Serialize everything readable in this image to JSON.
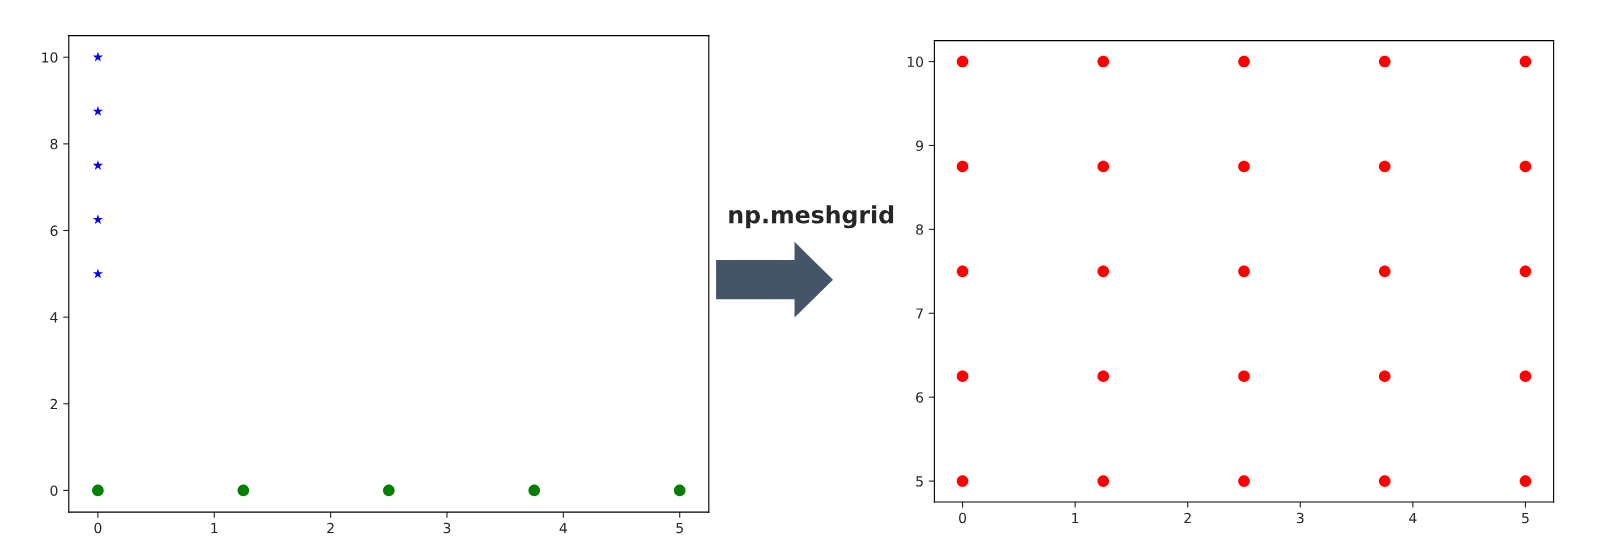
{
  "chart_data": [
    {
      "type": "scatter",
      "xlim": [
        -0.25,
        5.25
      ],
      "ylim": [
        -0.5,
        10.5
      ],
      "xticks": [
        0,
        1,
        2,
        3,
        4,
        5
      ],
      "yticks": [
        0,
        2,
        4,
        6,
        8,
        10
      ],
      "grid": false,
      "legend": false,
      "annotations": [
        "np.meshgrid"
      ],
      "series": [
        {
          "color": "#0000ff",
          "marker": "star",
          "x": [
            0,
            0,
            0,
            0,
            0
          ],
          "values": [
            5,
            6.25,
            7.5,
            8.75,
            10
          ]
        },
        {
          "color": "#008000",
          "marker": "circle",
          "x": [
            0,
            1.25,
            2.5,
            3.75,
            5
          ],
          "values": [
            0,
            0,
            0,
            0,
            0
          ]
        }
      ]
    },
    {
      "type": "scatter",
      "xlim": [
        -0.25,
        5.25
      ],
      "ylim": [
        4.75,
        10.25
      ],
      "xticks": [
        0,
        1,
        2,
        3,
        4,
        5
      ],
      "yticks": [
        5,
        6,
        7,
        8,
        9,
        10
      ],
      "grid": false,
      "legend": false,
      "series": [
        {
          "color": "#ff0000",
          "marker": "circle",
          "x": [
            0,
            1.25,
            2.5,
            3.75,
            5,
            0,
            1.25,
            2.5,
            3.75,
            5,
            0,
            1.25,
            2.5,
            3.75,
            5,
            0,
            1.25,
            2.5,
            3.75,
            5,
            0,
            1.25,
            2.5,
            3.75,
            5
          ],
          "values": [
            5,
            5,
            5,
            5,
            5,
            6.25,
            6.25,
            6.25,
            6.25,
            6.25,
            7.5,
            7.5,
            7.5,
            7.5,
            7.5,
            8.75,
            8.75,
            8.75,
            8.75,
            8.75,
            10,
            10,
            10,
            10,
            10
          ]
        }
      ]
    }
  ]
}
